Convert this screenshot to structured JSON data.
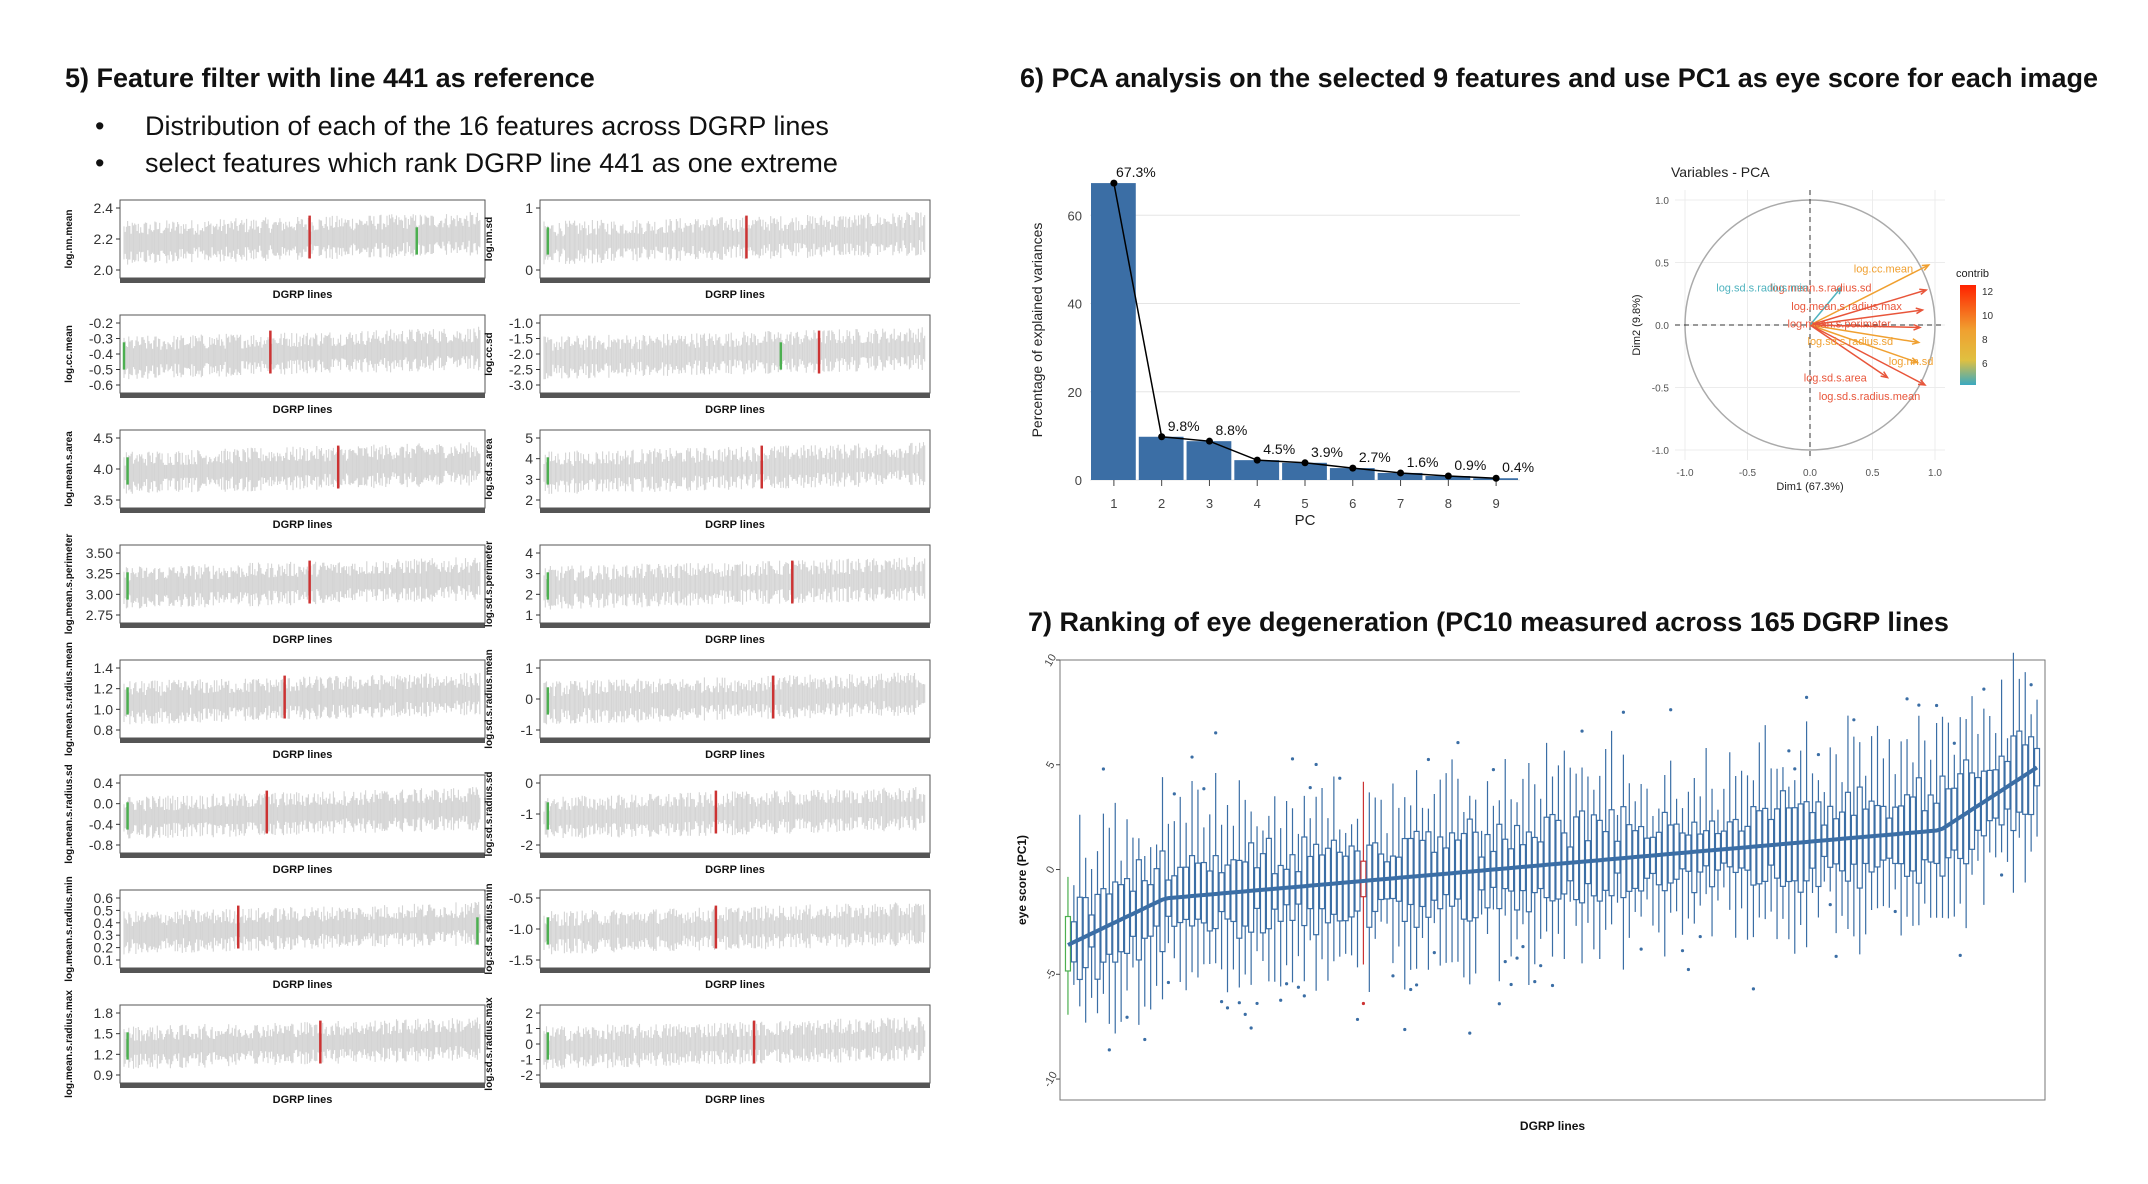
{
  "section5": {
    "title": "5) Feature filter with line 441 as reference",
    "bullets": [
      "Distribution of each of the  16 features across DGRP lines",
      "select features which rank DGRP line 441 as one extreme"
    ],
    "xlabel": "DGRP lines",
    "colors": {
      "bars": "#d4d4d4",
      "ref": "#cc3333",
      "extreme": "#4caf50",
      "axis": "#333333"
    },
    "panels": [
      {
        "ylabel": "log.nn.mean",
        "ticks": [
          "2.4",
          "2.2",
          "2.0"
        ],
        "ref_pos": 0.52,
        "green_pos": 0.82
      },
      {
        "ylabel": "log.nn.sd",
        "ticks": [
          "1",
          "0"
        ],
        "ref_pos": 0.53,
        "green_pos": 0.01
      },
      {
        "ylabel": "log.cc.mean",
        "ticks": [
          "-0.2",
          "-0.3",
          "-0.4",
          "-0.5",
          "-0.6"
        ],
        "ref_pos": 0.41,
        "green_pos": 0.0
      },
      {
        "ylabel": "log.cc.sd",
        "ticks": [
          "-1.0",
          "-1.5",
          "-2.0",
          "-2.5",
          "-3.0"
        ],
        "ref_pos": 0.72,
        "green_pos": 0.62
      },
      {
        "ylabel": "log.mean.s.area",
        "ticks": [
          "4.5",
          "4.0",
          "3.5"
        ],
        "ref_pos": 0.6,
        "green_pos": 0.01
      },
      {
        "ylabel": "log.sd.s.area",
        "ticks": [
          "5",
          "4",
          "3",
          "2"
        ],
        "ref_pos": 0.57,
        "green_pos": 0.01
      },
      {
        "ylabel": "log.mean.s.perimeter",
        "ticks": [
          "3.50",
          "3.25",
          "3.00",
          "2.75"
        ],
        "ref_pos": 0.52,
        "green_pos": 0.01
      },
      {
        "ylabel": "log.sd.s.perimeter",
        "ticks": [
          "4",
          "3",
          "2",
          "1"
        ],
        "ref_pos": 0.65,
        "green_pos": 0.01
      },
      {
        "ylabel": "log.mean.s.radius.mean",
        "ticks": [
          "1.4",
          "1.2",
          "1.0",
          "0.8"
        ],
        "ref_pos": 0.45,
        "green_pos": 0.01
      },
      {
        "ylabel": "log.sd.s.radius.mean",
        "ticks": [
          "1",
          "0",
          "-1"
        ],
        "ref_pos": 0.6,
        "green_pos": 0.01
      },
      {
        "ylabel": "log.mean.s.radius.sd",
        "ticks": [
          "0.4",
          "0.0",
          "-0.4",
          "-0.8"
        ],
        "ref_pos": 0.4,
        "green_pos": 0.01
      },
      {
        "ylabel": "log.sd.s.radius.sd",
        "ticks": [
          "0",
          "-1",
          "-2"
        ],
        "ref_pos": 0.45,
        "green_pos": 0.01
      },
      {
        "ylabel": "log.mean.s.radius.min",
        "ticks": [
          "0.6",
          "0.5",
          "0.4",
          "0.3",
          "0.2",
          "0.1"
        ],
        "ref_pos": 0.32,
        "green_pos": 0.99
      },
      {
        "ylabel": "log.sd.s.radius.min",
        "ticks": [
          "-0.5",
          "-1.0",
          "-1.5"
        ],
        "ref_pos": 0.45,
        "green_pos": 0.01
      },
      {
        "ylabel": "log.mean.s.radius.max",
        "ticks": [
          "1.8",
          "1.5",
          "1.2",
          "0.9"
        ],
        "ref_pos": 0.55,
        "green_pos": 0.01
      },
      {
        "ylabel": "log.sd.s.radius.max",
        "ticks": [
          "2",
          "1",
          "0",
          "-1",
          "-2"
        ],
        "ref_pos": 0.55,
        "green_pos": 0.01
      }
    ]
  },
  "section6": {
    "title": "6) PCA analysis on the selected 9 features and use PC1 as eye score for each image"
  },
  "section7": {
    "title": "7) Ranking of eye degeneration (PC10 measured across 165 DGRP lines"
  },
  "chart_data": [
    {
      "type": "bar",
      "categories": [
        "1",
        "2",
        "3",
        "4",
        "5",
        "6",
        "7",
        "8",
        "9"
      ],
      "values": [
        67.3,
        9.8,
        8.8,
        4.5,
        3.9,
        2.7,
        1.6,
        0.9,
        0.4
      ],
      "labels": [
        "67.3%",
        "9.8%",
        "8.8%",
        "4.5%",
        "3.9%",
        "2.7%",
        "1.6%",
        "0.9%",
        "0.4%"
      ],
      "xlabel": "PC",
      "ylabel": "Percentage of explained variances",
      "ylim": [
        0,
        68
      ],
      "yticks": [
        "0",
        "20",
        "40",
        "60"
      ],
      "bar_color": "#3b6ea5",
      "line": true,
      "grid": true
    },
    {
      "type": "scatter",
      "title": "Variables - PCA",
      "xlabel": "Dim1 (67.3%)",
      "ylabel": "Dim2 (9.8%)",
      "xlim": [
        -1,
        1
      ],
      "ylim": [
        -1,
        1
      ],
      "ticks": [
        "-1.0",
        "-0.5",
        "0.0",
        "0.5",
        "1.0"
      ],
      "legend_title": "contrib",
      "legend_ticks": [
        "12",
        "10",
        "8",
        "6"
      ],
      "legend_placement": "right",
      "arrows": [
        {
          "name": "log.cc.mean",
          "x": 0.95,
          "y": 0.48,
          "color": "#f0a030"
        },
        {
          "name": "log.mean.s.radius.sd",
          "x": 0.93,
          "y": 0.28,
          "color": "#e8553a"
        },
        {
          "name": "log.mean.s.radius.max",
          "x": 0.9,
          "y": 0.12,
          "color": "#e8553a"
        },
        {
          "name": "log.mean.s.perimeter",
          "x": 0.88,
          "y": -0.02,
          "color": "#e8553a"
        },
        {
          "name": "log.sd.s.radius.sd",
          "x": 0.87,
          "y": -0.14,
          "color": "#f0a030"
        },
        {
          "name": "log.nn.sd",
          "x": 0.86,
          "y": -0.3,
          "color": "#f0a030"
        },
        {
          "name": "log.sd.s.area",
          "x": 0.62,
          "y": -0.42,
          "color": "#e8553a"
        },
        {
          "name": "log.sd.s.radius.mean",
          "x": 0.92,
          "y": -0.48,
          "color": "#e8553a"
        },
        {
          "name": "log.sd.s.radius.min",
          "x": 0.25,
          "y": 0.3,
          "color": "#4fb3bf"
        }
      ],
      "label_positions": [
        {
          "text": "log.cc.mean",
          "x": 0.35,
          "y": 0.42
        },
        {
          "text": "log.mean.s.radius.sd",
          "x": -0.32,
          "y": 0.27
        },
        {
          "text": "log.mean.s.radius.max",
          "x": -0.15,
          "y": 0.12
        },
        {
          "text": "log.mean.s.perimeter",
          "x": -0.18,
          "y": -0.02
        },
        {
          "text": "log.sd.s.radius.sd",
          "x": -0.02,
          "y": -0.16
        },
        {
          "text": "log.nn.sd",
          "x": 0.63,
          "y": -0.32
        },
        {
          "text": "log.sd.s.area",
          "x": -0.05,
          "y": -0.45
        },
        {
          "text": "log.sd.s.radius.mean",
          "x": 0.07,
          "y": -0.6
        },
        {
          "text": "log.sd.s.radius.min",
          "x": -0.75,
          "y": 0.27
        }
      ]
    },
    {
      "type": "box",
      "xlabel": "DGRP lines",
      "ylabel": "eye score (PC1)",
      "ylim": [
        -11,
        10
      ],
      "yticks": [
        "10",
        "5",
        "0",
        "-5",
        "-10"
      ],
      "n_lines": 165,
      "median_start": -3.6,
      "median_end": 3.8,
      "box_color": "#3b6ea5",
      "ref_color": "#cc3333",
      "extreme_color": "#4caf50",
      "ref_index": 50,
      "extreme_index": 0
    }
  ]
}
